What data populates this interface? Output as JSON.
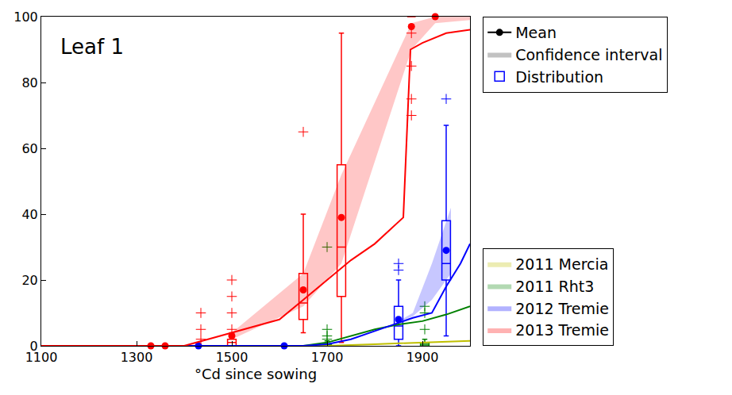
{
  "chart_data": {
    "type": "line",
    "annotations": [
      "Leaf 1"
    ],
    "x_label": "°Cd since sowing",
    "xlim": [
      1100,
      2000
    ],
    "xticks": [
      1100,
      1300,
      1500,
      1700,
      1900
    ],
    "ylim": [
      0,
      100
    ],
    "yticks": [
      0,
      20,
      40,
      60,
      80,
      100
    ],
    "grid": false,
    "legend": "right",
    "key": [
      {
        "name": "Mean",
        "type": "line",
        "marker": "circle",
        "color": "#000000"
      },
      {
        "name": "Confidence interval",
        "type": "area",
        "color": "#999999"
      },
      {
        "name": "Distribution",
        "type": "box",
        "color": "#0000ff"
      }
    ],
    "series": [
      {
        "name": "2011 Mercia",
        "color": "#bfbf00",
        "x": [
          1100,
          1700,
          1800,
          1900,
          2000
        ],
        "values": [
          0,
          0,
          0.5,
          1,
          1.5
        ]
      },
      {
        "name": "2011 Rht3",
        "color": "#008000",
        "x": [
          1100,
          1650,
          1700,
          1750,
          1800,
          1850,
          1900,
          1950,
          2000
        ],
        "values": [
          0,
          0,
          1,
          3,
          5,
          6.5,
          7.5,
          9.5,
          12
        ],
        "boxes": [
          {
            "x": 1700,
            "low": 0,
            "q1": 0,
            "median": 0,
            "q3": 0.5,
            "high": 1.5,
            "outliers": [
              2,
              3,
              5,
              30
            ]
          },
          {
            "x": 1905,
            "low": 0,
            "q1": 0,
            "median": 0.5,
            "q3": 1,
            "high": 2,
            "outliers": [
              5,
              10,
              12
            ]
          }
        ]
      },
      {
        "name": "2012 Tremie",
        "color": "#0000ff",
        "x": [
          1100,
          1650,
          1700,
          1750,
          1800,
          1850,
          1880,
          1920,
          1950,
          1980,
          2000
        ],
        "values": [
          0,
          0,
          0.5,
          2,
          4.5,
          7,
          8.5,
          10,
          18,
          25,
          31
        ],
        "band": {
          "x": [
            1845,
            1880,
            1920,
            1960
          ],
          "lower": [
            7,
            9,
            14,
            22
          ],
          "upper": [
            7,
            10,
            25,
            42
          ]
        },
        "means": {
          "x": [
            1430,
            1610,
            1850,
            1950
          ],
          "values": [
            0,
            0,
            8,
            29
          ]
        },
        "boxes": [
          {
            "x": 1850,
            "low": 0,
            "q1": 2,
            "median": 6,
            "q3": 12,
            "high": 20,
            "outliers": [
              23,
              25
            ]
          },
          {
            "x": 1950,
            "low": 3,
            "q1": 20,
            "median": 25,
            "q3": 38,
            "high": 67,
            "outliers": [
              75
            ]
          }
        ]
      },
      {
        "name": "2013 Tremie",
        "color": "#ff0000",
        "x": [
          1100,
          1400,
          1450,
          1500,
          1550,
          1600,
          1650,
          1700,
          1750,
          1800,
          1860,
          1875,
          1900,
          1950,
          2000
        ],
        "values": [
          0,
          0,
          2,
          4,
          6,
          8,
          14,
          20,
          26,
          31,
          39,
          90,
          92,
          95,
          96
        ],
        "band": {
          "x": [
            1500,
            1650,
            1730,
            1877,
            1927,
            2000
          ],
          "lower": [
            2,
            12,
            25,
            90,
            98,
            99
          ],
          "upper": [
            4,
            22,
            52,
            98,
            100,
            100
          ]
        },
        "means": {
          "x": [
            1330,
            1360,
            1500,
            1650,
            1730,
            1877,
            1927
          ],
          "values": [
            0,
            0,
            3,
            17,
            39,
            97,
            100
          ]
        },
        "boxes": [
          {
            "x": 1435,
            "low": 0,
            "q1": 0,
            "median": 0,
            "q3": 0,
            "high": 0,
            "outliers": [
              2,
              5,
              10
            ]
          },
          {
            "x": 1500,
            "low": 0,
            "q1": 0,
            "median": 1,
            "q3": 2,
            "high": 4,
            "outliers": [
              5,
              10,
              15,
              20
            ]
          },
          {
            "x": 1650,
            "low": 4,
            "q1": 8,
            "median": 13,
            "q3": 22,
            "high": 40,
            "outliers": [
              65
            ]
          },
          {
            "x": 1730,
            "low": 1,
            "q1": 15,
            "median": 30,
            "q3": 55,
            "high": 95,
            "outliers": []
          },
          {
            "x": 1877,
            "low": 100,
            "q1": 100,
            "median": 100,
            "q3": 100,
            "high": 100,
            "outliers": [
              70,
              75,
              85,
              95
            ]
          }
        ]
      }
    ]
  }
}
